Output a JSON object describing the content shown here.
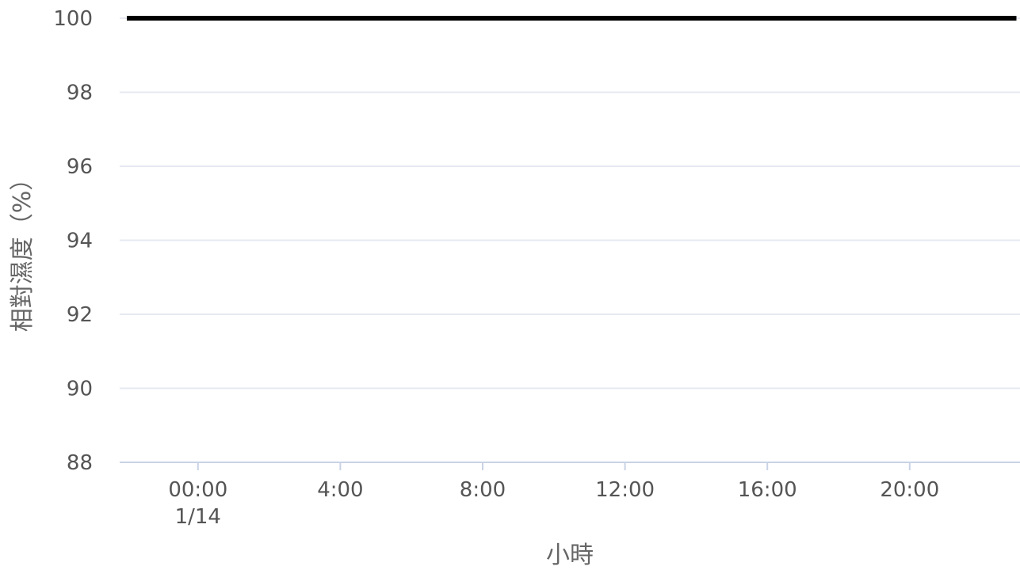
{
  "chart_data": {
    "type": "line",
    "title": "",
    "xlabel": "小時",
    "ylabel": "相對濕度（%）",
    "ylim": [
      88,
      100
    ],
    "yticks": [
      "88",
      "90",
      "92",
      "94",
      "96",
      "98",
      "100"
    ],
    "xticks": [
      {
        "hour": 0,
        "label": "00:00",
        "sublabel": "1/14"
      },
      {
        "hour": 4,
        "label": "4:00",
        "sublabel": ""
      },
      {
        "hour": 8,
        "label": "8:00",
        "sublabel": ""
      },
      {
        "hour": 12,
        "label": "12:00",
        "sublabel": ""
      },
      {
        "hour": 16,
        "label": "16:00",
        "sublabel": ""
      },
      {
        "hour": 20,
        "label": "20:00",
        "sublabel": ""
      }
    ],
    "xlim": [
      -2.2,
      23.1
    ],
    "grid": true,
    "series": [
      {
        "color": "#000000",
        "x": [
          -2,
          23
        ],
        "y": [
          100,
          100
        ]
      }
    ]
  }
}
